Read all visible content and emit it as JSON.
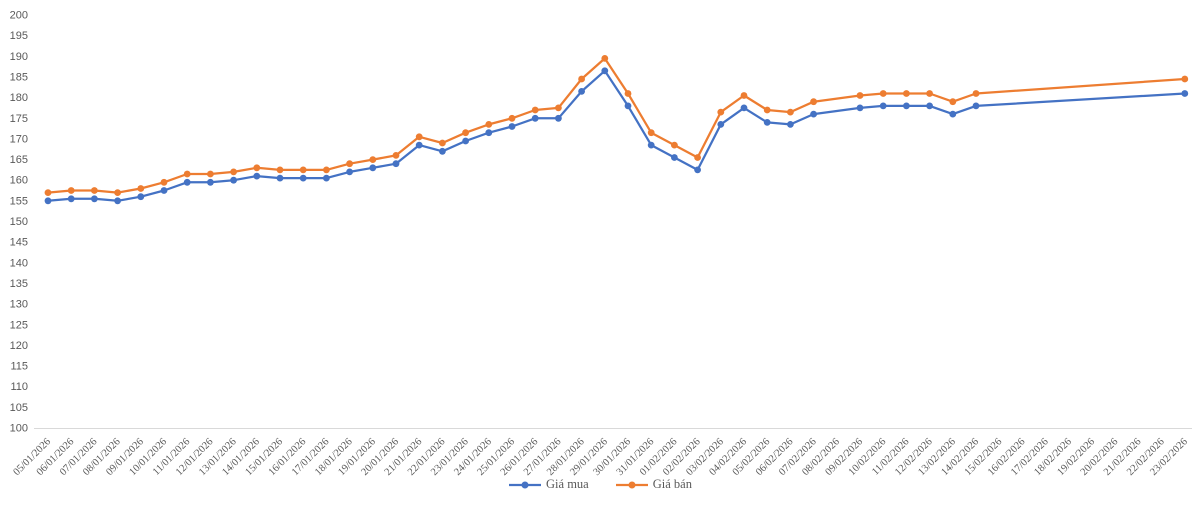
{
  "chart": {
    "background_color": "#FFFFFF",
    "axis_line_color": "#D9D9D9",
    "label_color": "#595959",
    "legend_labels": {
      "buy": "Giá mua",
      "sell": "Giá bán"
    }
  },
  "chart_data": {
    "type": "line",
    "title": "",
    "xlabel": "",
    "ylabel": "",
    "ylim": [
      100,
      200
    ],
    "ytick_step": 5,
    "grid": false,
    "legend_position": "bottom",
    "marker": "circle",
    "categories": [
      "05/01/2026",
      "06/01/2026",
      "07/01/2026",
      "08/01/2026",
      "09/01/2026",
      "10/01/2026",
      "11/01/2026",
      "12/01/2026",
      "13/01/2026",
      "14/01/2026",
      "15/01/2026",
      "16/01/2026",
      "17/01/2026",
      "18/01/2026",
      "19/01/2026",
      "20/01/2026",
      "21/01/2026",
      "22/01/2026",
      "23/01/2026",
      "24/01/2026",
      "25/01/2026",
      "26/01/2026",
      "27/01/2026",
      "28/01/2026",
      "29/01/2026",
      "30/01/2026",
      "31/01/2026",
      "01/02/2026",
      "02/02/2026",
      "03/02/2026",
      "04/02/2026",
      "05/02/2026",
      "06/02/2026",
      "07/02/2026",
      "08/02/2026",
      "09/02/2026",
      "10/02/2026",
      "11/02/2026",
      "12/02/2026",
      "13/02/2026",
      "14/02/2026",
      "15/02/2026",
      "16/02/2026",
      "17/02/2026",
      "18/02/2026",
      "19/02/2026",
      "20/02/2026",
      "21/02/2026",
      "22/02/2026",
      "23/02/2026"
    ],
    "series": [
      {
        "name": "Giá mua",
        "color": "#4472C4",
        "values": [
          155,
          155.5,
          155.5,
          155,
          156,
          157.5,
          159.5,
          159.5,
          160,
          161,
          160.5,
          160.5,
          160.5,
          162,
          163,
          164,
          168.5,
          167,
          169.5,
          171.5,
          173,
          175,
          175,
          181.5,
          186.5,
          178,
          168.5,
          165.5,
          162.5,
          173.5,
          177.5,
          174,
          173.5,
          176,
          null,
          177.5,
          178,
          178,
          178,
          176,
          178,
          null,
          null,
          null,
          null,
          null,
          null,
          null,
          null,
          181
        ]
      },
      {
        "name": "Giá bán",
        "color": "#ED7D31",
        "values": [
          157,
          157.5,
          157.5,
          157,
          158,
          159.5,
          161.5,
          161.5,
          162,
          163,
          162.5,
          162.5,
          162.5,
          164,
          165,
          166,
          170.5,
          169,
          171.5,
          173.5,
          175,
          177,
          177.5,
          184.5,
          189.5,
          181,
          171.5,
          168.5,
          165.5,
          176.5,
          180.5,
          177,
          176.5,
          179,
          null,
          180.5,
          181,
          181,
          181,
          179,
          181,
          null,
          null,
          null,
          null,
          null,
          null,
          null,
          null,
          184.5
        ]
      }
    ]
  }
}
